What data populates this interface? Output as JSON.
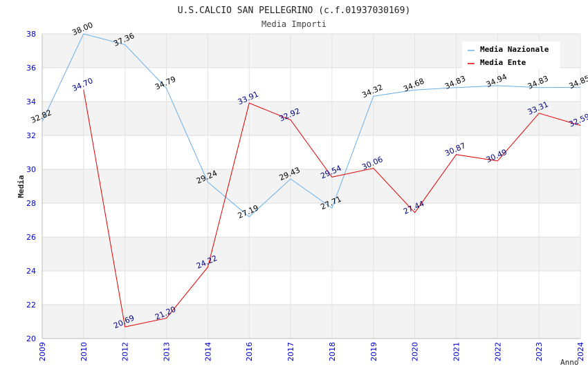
{
  "chart_data": {
    "type": "line",
    "title": "U.S.CALCIO SAN PELLEGRINO (c.f.01937030169)",
    "subtitle": "Media Importi",
    "xlabel": "Anno",
    "ylabel": "Media",
    "ylim": [
      20,
      38
    ],
    "yticks": [
      "20",
      "22",
      "24",
      "26",
      "28",
      "30",
      "32",
      "34",
      "36",
      "38"
    ],
    "categories": [
      "2009",
      "2010",
      "2012",
      "2013",
      "2014",
      "2016",
      "2017",
      "2018",
      "2019",
      "2020",
      "2021",
      "2022",
      "2023",
      "2024"
    ],
    "grid": true,
    "legend_position": "top-right",
    "series": [
      {
        "name": "Media Nazionale",
        "color": "#6aaee8",
        "label_color": "#000000",
        "values": [
          32.82,
          38.0,
          37.36,
          34.79,
          29.24,
          27.19,
          29.43,
          27.71,
          34.32,
          34.68,
          34.83,
          34.94,
          34.83,
          34.85
        ],
        "labels": [
          "32.82",
          "38.00",
          "37.36",
          "34.79",
          "29.24",
          "27.19",
          "29.43",
          "27.71",
          "34.32",
          "34.68",
          "34.83",
          "34.94",
          "34.83",
          "34.85"
        ]
      },
      {
        "name": "Media Ente",
        "color": "#e00000",
        "label_color": "#000080",
        "values": [
          null,
          34.7,
          20.69,
          21.2,
          24.22,
          33.91,
          32.92,
          29.54,
          30.06,
          27.44,
          30.87,
          30.49,
          33.31,
          32.59
        ],
        "labels": [
          null,
          "34.70",
          "20.69",
          "21.20",
          "24.22",
          "33.91",
          "32.92",
          "29.54",
          "30.06",
          "27.44",
          "30.87",
          "30.49",
          "33.31",
          "32.59"
        ]
      }
    ]
  }
}
